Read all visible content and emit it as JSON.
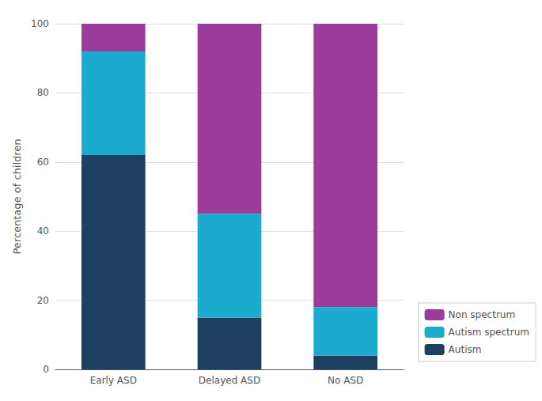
{
  "chart_data": {
    "type": "bar",
    "stacked": true,
    "categories": [
      "Early ASD",
      "Delayed ASD",
      "No ASD"
    ],
    "series": [
      {
        "name": "Autism",
        "color": "#1e4060",
        "values": [
          62,
          15,
          4
        ]
      },
      {
        "name": "Autism spectrum",
        "color": "#1aabcf",
        "values": [
          30,
          30,
          14
        ]
      },
      {
        "name": "Non spectrum",
        "color": "#9b3b9b",
        "values": [
          8,
          55,
          82
        ]
      }
    ],
    "ylabel": "Percentage of children",
    "ylim": [
      0,
      100
    ],
    "yticks": [
      0,
      20,
      40,
      60,
      80,
      100
    ],
    "grid": true,
    "legend": "lower right"
  }
}
